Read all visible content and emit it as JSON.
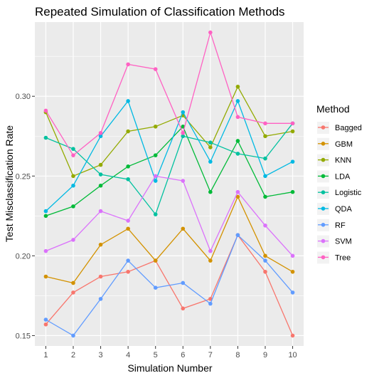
{
  "chart_data": {
    "type": "line",
    "title": "Repeated Simulation of Classification Methods",
    "xlabel": "Simulation Number",
    "ylabel": "Test Misclassification Rate",
    "x": [
      1,
      2,
      3,
      4,
      5,
      6,
      7,
      8,
      9,
      10
    ],
    "xlim": [
      0.6,
      10.4
    ],
    "ylim": [
      0.1435,
      0.3465
    ],
    "yticks": [
      "0.15",
      "0.20",
      "0.25",
      "0.30"
    ],
    "ytick_values": [
      0.15,
      0.2,
      0.25,
      0.3
    ],
    "grid": true,
    "legend_title": "Method",
    "legend_position": "right",
    "series": [
      {
        "name": "Bagged",
        "color": "#F8766D",
        "values": [
          0.157,
          0.177,
          0.187,
          0.19,
          0.197,
          0.167,
          0.173,
          0.213,
          0.19,
          0.15
        ]
      },
      {
        "name": "GBM",
        "color": "#D39200",
        "values": [
          0.187,
          0.183,
          0.207,
          0.217,
          0.197,
          0.217,
          0.197,
          0.237,
          0.2,
          0.19
        ]
      },
      {
        "name": "KNN",
        "color": "#93AA00",
        "values": [
          0.29,
          0.25,
          0.257,
          0.278,
          0.281,
          0.288,
          0.268,
          0.306,
          0.275,
          0.278
        ]
      },
      {
        "name": "LDA",
        "color": "#00BA38",
        "values": [
          0.225,
          0.231,
          0.244,
          0.256,
          0.263,
          0.281,
          0.24,
          0.272,
          0.237,
          0.24
        ]
      },
      {
        "name": "Logistic",
        "color": "#00C19F",
        "values": [
          0.274,
          0.267,
          0.251,
          0.248,
          0.226,
          0.275,
          0.271,
          0.264,
          0.261,
          0.283
        ]
      },
      {
        "name": "QDA",
        "color": "#00B9E3",
        "values": [
          0.228,
          0.244,
          0.275,
          0.297,
          0.247,
          0.29,
          0.259,
          0.297,
          0.25,
          0.259
        ]
      },
      {
        "name": "RF",
        "color": "#619CFF",
        "values": [
          0.16,
          0.15,
          0.173,
          0.197,
          0.18,
          0.183,
          0.17,
          0.213,
          0.197,
          0.177
        ]
      },
      {
        "name": "SVM",
        "color": "#DB72FB",
        "values": [
          0.203,
          0.21,
          0.228,
          0.222,
          0.25,
          0.247,
          0.203,
          0.24,
          0.219,
          0.2
        ]
      },
      {
        "name": "Tree",
        "color": "#FF61C3",
        "values": [
          0.291,
          0.263,
          0.277,
          0.32,
          0.317,
          0.277,
          0.34,
          0.287,
          0.283,
          0.283
        ]
      }
    ]
  },
  "colors": {
    "panel_background": "#EBEBEB",
    "grid_major": "#FFFFFF",
    "tick_text": "#4D4D4D"
  }
}
